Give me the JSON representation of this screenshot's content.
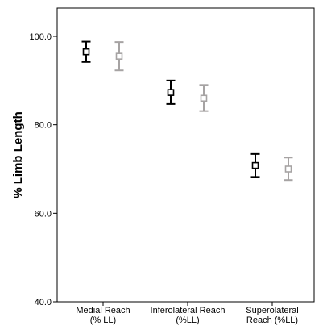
{
  "chart_data": {
    "type": "scatter",
    "subtype": "error-bar",
    "ylabel": "% Limb Length",
    "xlabel": "",
    "ylim": [
      40.0,
      100.0
    ],
    "yticks": [
      "40.0",
      "60.0",
      "80.0",
      "100.0"
    ],
    "yticks_values": [
      40.0,
      60.0,
      80.0,
      100.0
    ],
    "categories": [
      [
        "Medial Reach",
        "(% LL)"
      ],
      [
        "Inferolateral Reach",
        "(%LL)"
      ],
      [
        "Superolateral",
        "Reach (%LL)"
      ]
    ],
    "grid": false,
    "legend": "none",
    "series": [
      {
        "color": "#000000",
        "means": [
          96.5,
          87.3,
          70.8
        ],
        "lower": [
          94.2,
          84.7,
          68.2
        ],
        "upper": [
          98.8,
          90.0,
          73.4
        ]
      },
      {
        "color": "#a6a3a3",
        "means": [
          95.5,
          86.0,
          70.0
        ],
        "lower": [
          92.3,
          83.1,
          67.5
        ],
        "upper": [
          98.7,
          89.0,
          72.6
        ]
      }
    ]
  }
}
